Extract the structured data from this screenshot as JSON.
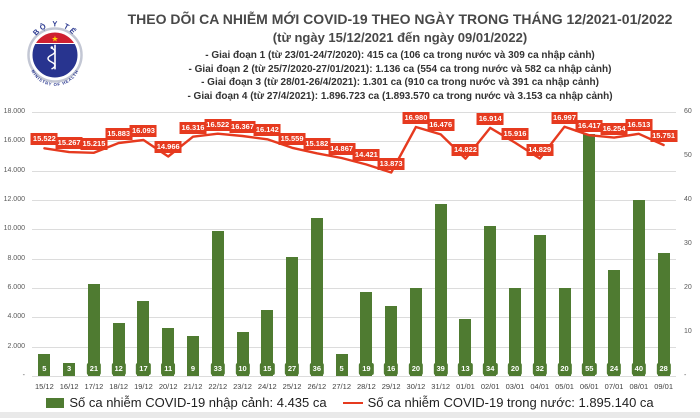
{
  "header": {
    "logo": {
      "top_text": "BỘ Y TẾ",
      "bottom_text": "MINISTRY OF HEALTH"
    }
  },
  "chart_data": {
    "type": "bar+line",
    "title": "THEO DÕI CA NHIỄM MỚI COVID-19 THEO NGÀY TRONG THÁNG 12/2021-01/2022",
    "subtitle": "(từ ngày 15/12/2021 đến ngày 09/01/2022)",
    "annotations": [
      "- Giai đoạn 1 (từ 23/01-24/7/2020): 415 ca (106 ca trong nước và 309 ca nhập cảnh)",
      "- Giai đoạn 2 (từ 25/7/2020-27/01/2021): 1.136 ca (554 ca trong nước và 582 ca nhập cảnh)",
      "- Giai đoạn 3 (từ 28/01-26/4/2021): 1.301 ca (910 ca trong nước và 391 ca nhập cảnh)",
      "- Giai đoạn 4 (từ 27/4/2021): 1.896.723 ca (1.893.570 ca trong nước và 3.153 ca nhập cảnh)"
    ],
    "categories": [
      "15/12",
      "16/12",
      "17/12",
      "18/12",
      "19/12",
      "20/12",
      "21/12",
      "22/12",
      "23/12",
      "24/12",
      "25/12",
      "26/12",
      "27/12",
      "28/12",
      "29/12",
      "30/12",
      "31/12",
      "01/01",
      "02/01",
      "03/01",
      "04/01",
      "05/01",
      "06/01",
      "07/01",
      "08/01",
      "09/01"
    ],
    "series": [
      {
        "name": "Số ca nhiễm COVID-19 nhập cảnh: 4.435 ca",
        "type": "bar",
        "axis": "right",
        "color": "#4f7b31",
        "values": [
          5,
          3,
          21,
          12,
          17,
          11,
          9,
          33,
          10,
          15,
          27,
          36,
          5,
          19,
          16,
          20,
          39,
          13,
          34,
          20,
          32,
          20,
          55,
          24,
          40,
          28
        ]
      },
      {
        "name": "Số ca nhiễm COVID-19 trong nước: 1.895.140 ca",
        "type": "line",
        "axis": "left",
        "color": "#e63a1f",
        "values": [
          15522,
          15267,
          15215,
          15883,
          16093,
          14966,
          16316,
          16522,
          16367,
          16142,
          15559,
          15182,
          14867,
          14421,
          13873,
          16980,
          16476,
          14822,
          16914,
          15916,
          14829,
          16997,
          16417,
          16254,
          16513,
          15751
        ],
        "point_labels": [
          "15.522",
          "15.267",
          "15.215",
          "15.883",
          "16.093",
          "14.966",
          "16.316",
          "16.522",
          "16.367",
          "16.142",
          "15.559",
          "15.182",
          "14.867",
          "14.421",
          "13.873",
          "16.980",
          "16.476",
          "14.822",
          "16.914",
          "15.916",
          "14.829",
          "16.997",
          "16.417",
          "16.254",
          "16.513",
          "15.751"
        ]
      }
    ],
    "left_axis": {
      "min": 0,
      "max": 18000,
      "tick_labels": [
        "18.000",
        "16.000",
        "14.000",
        "12.000",
        "10.000",
        "8.000",
        "6.000",
        "4.000",
        "2.000",
        "-"
      ]
    },
    "right_axis": {
      "min": 0,
      "max": 60,
      "tick_labels": [
        "60",
        "50",
        "40",
        "30",
        "20",
        "10",
        "-"
      ]
    },
    "grid": true,
    "legend_position": "bottom"
  }
}
